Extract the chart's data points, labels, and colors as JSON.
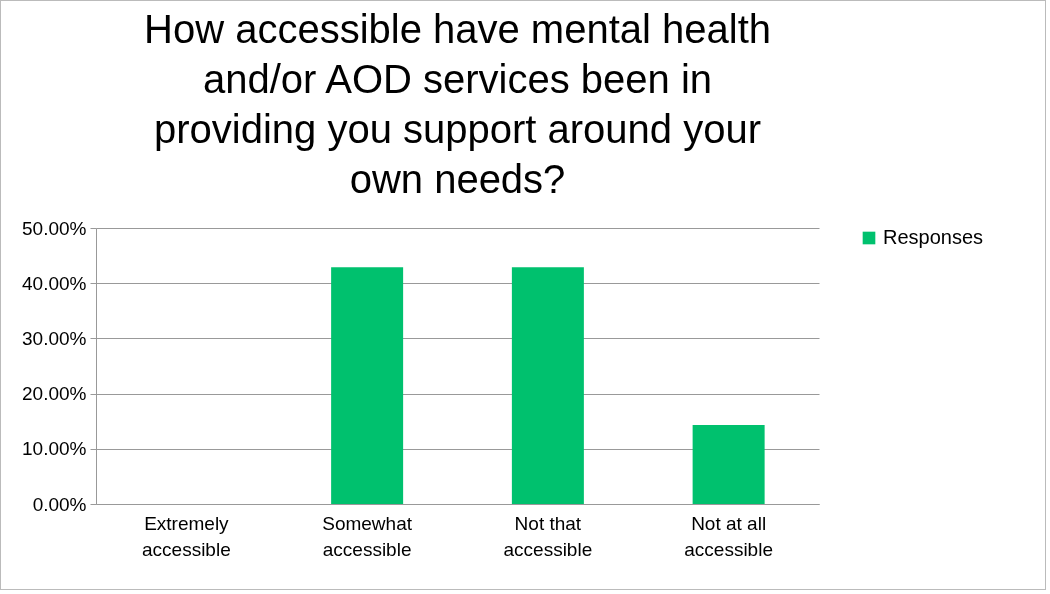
{
  "chart_data": {
    "type": "bar",
    "title": "How accessible have mental health and/or AOD services been in providing you support around your own needs?",
    "categories": [
      "Extremely accessible",
      "Somewhat accessible",
      "Not that accessible",
      "Not at all accessible"
    ],
    "series": [
      {
        "name": "Responses",
        "color": "#00c16e",
        "values": [
          0,
          42.9,
          42.9,
          14.3
        ]
      }
    ],
    "ylim": [
      0,
      50
    ],
    "yticks": [
      {
        "value": 0,
        "label": "0.00%"
      },
      {
        "value": 10,
        "label": "10.00%"
      },
      {
        "value": 20,
        "label": "20.00%"
      },
      {
        "value": 30,
        "label": "30.00%"
      },
      {
        "value": 40,
        "label": "40.00%"
      },
      {
        "value": 50,
        "label": "50.00%"
      }
    ],
    "grid": "y",
    "legend": "right"
  }
}
